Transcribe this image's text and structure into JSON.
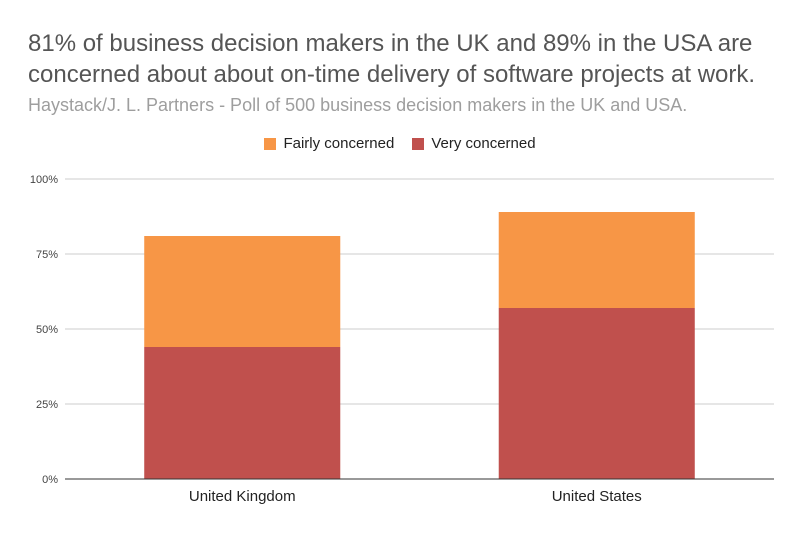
{
  "chart_data": {
    "type": "bar",
    "stacked": true,
    "title": "81% of business decision makers in the UK and 89% in the USA are concerned about about on-time delivery of software projects at work.",
    "subtitle": "Haystack/J. L. Partners - Poll of 500 business decision makers in the UK and USA.",
    "categories": [
      "United Kingdom",
      "United States"
    ],
    "series": [
      {
        "name": "Very concerned",
        "values": [
          44,
          57
        ],
        "color": "#c0504d"
      },
      {
        "name": "Fairly concerned",
        "values": [
          37,
          32
        ],
        "color": "#f79646"
      }
    ],
    "ylim": [
      0,
      100
    ],
    "yticks": [
      0,
      25,
      50,
      75,
      100
    ],
    "ytick_labels": [
      "0%",
      "25%",
      "50%",
      "75%",
      "100%"
    ],
    "legend_position": "top",
    "legend_order": [
      "Fairly concerned",
      "Very concerned"
    ],
    "grid": true,
    "xlabel": "",
    "ylabel": ""
  }
}
